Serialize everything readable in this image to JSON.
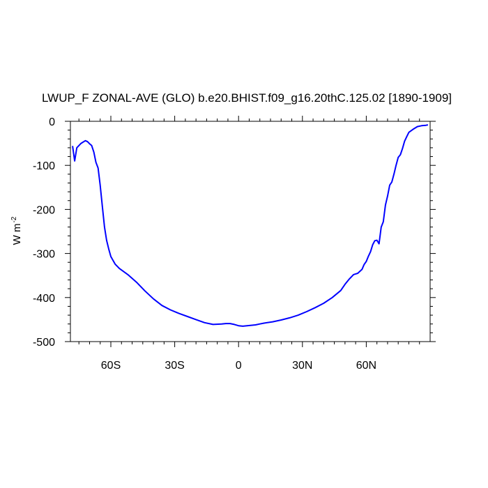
{
  "chart_data": {
    "type": "line",
    "title": "LWUP_F ZONAL-AVE (GLO) b.e20.BHIST.f09_g16.20thC.125.02 [1890-1909]",
    "xlabel": "",
    "ylabel": "W m",
    "ylabel_superscript": "-2",
    "xlim": [
      -79,
      90
    ],
    "ylim": [
      -500,
      0
    ],
    "x_ticks": [
      {
        "value": -60,
        "label": "60S"
      },
      {
        "value": -30,
        "label": "30S"
      },
      {
        "value": 0,
        "label": "0"
      },
      {
        "value": 30,
        "label": "30N"
      },
      {
        "value": 60,
        "label": "60N"
      }
    ],
    "y_ticks": [
      {
        "value": 0,
        "label": "0"
      },
      {
        "value": -100,
        "label": "-100"
      },
      {
        "value": -200,
        "label": "-200"
      },
      {
        "value": -300,
        "label": "-300"
      },
      {
        "value": -400,
        "label": "-400"
      },
      {
        "value": -500,
        "label": "-500"
      }
    ],
    "x_minor_ticks": [
      -75,
      -70,
      -65,
      -55,
      -50,
      -45,
      -40,
      -35,
      -25,
      -20,
      -15,
      -10,
      -5,
      5,
      10,
      15,
      20,
      25,
      35,
      40,
      45,
      50,
      55,
      65,
      70,
      75,
      80,
      85
    ],
    "y_minor_ticks": [
      -20,
      -40,
      -60,
      -80,
      -120,
      -140,
      -160,
      -180,
      -220,
      -240,
      -260,
      -280,
      -320,
      -340,
      -360,
      -380,
      -420,
      -440,
      -460,
      -480
    ],
    "grid": false,
    "series": [
      {
        "color": "#0000ff",
        "x": [
          -78,
          -77,
          -76,
          -74,
          -72,
          -71,
          -70,
          -69,
          -68,
          -67,
          -66,
          -65,
          -64,
          -63,
          -62,
          -61,
          -60,
          -58,
          -56,
          -52,
          -48,
          -44,
          -40,
          -36,
          -32,
          -28,
          -24,
          -20,
          -16,
          -12,
          -8,
          -6,
          -4,
          -2,
          0,
          2,
          4,
          6,
          8,
          10,
          12,
          16,
          20,
          24,
          28,
          32,
          36,
          40,
          44,
          48,
          50,
          52,
          54,
          56,
          58,
          59,
          60,
          61,
          62,
          63,
          64,
          65,
          66,
          67,
          68,
          69,
          70,
          71,
          72,
          73,
          74,
          75,
          76,
          77,
          78,
          79,
          80,
          82,
          84,
          86,
          88,
          89
        ],
        "y": [
          -56,
          -90,
          -60,
          -50,
          -44,
          -46,
          -51,
          -55,
          -70,
          -93,
          -106,
          -145,
          -193,
          -240,
          -270,
          -290,
          -307,
          -324,
          -334,
          -348,
          -365,
          -385,
          -403,
          -418,
          -428,
          -436,
          -443,
          -450,
          -457,
          -461,
          -460,
          -459,
          -459,
          -461,
          -464,
          -465,
          -464,
          -463,
          -462,
          -460,
          -458,
          -455,
          -451,
          -446,
          -440,
          -432,
          -423,
          -413,
          -400,
          -384,
          -370,
          -358,
          -348,
          -345,
          -336,
          -325,
          -318,
          -306,
          -296,
          -280,
          -271,
          -270,
          -278,
          -240,
          -228,
          -190,
          -170,
          -145,
          -138,
          -120,
          -100,
          -82,
          -76,
          -62,
          -45,
          -35,
          -25,
          -18,
          -12,
          -10,
          -9,
          -8
        ]
      }
    ]
  }
}
